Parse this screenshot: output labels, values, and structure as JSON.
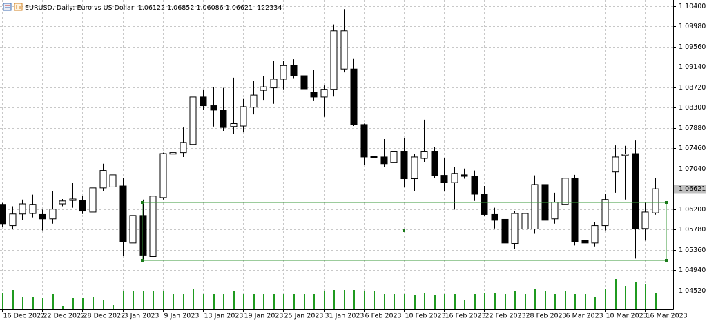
{
  "chart_data": {
    "type": "candlestick",
    "title": "EURUSD, Daily: Euro vs US Dollar",
    "categories": [
      "16 Dec 2022",
      null,
      null,
      null,
      "22 Dec 2022",
      null,
      null,
      null,
      "28 Dec 2022",
      null,
      null,
      null,
      "3 Jan 2023",
      null,
      null,
      null,
      "9 Jan 2023",
      null,
      null,
      null,
      "13 Jan 2023",
      null,
      null,
      null,
      "19 Jan 2023",
      null,
      null,
      null,
      "25 Jan 2023",
      null,
      null,
      null,
      "31 Jan 2023",
      null,
      null,
      null,
      "6 Feb 2023",
      null,
      null,
      null,
      "10 Feb 2023",
      null,
      null,
      null,
      "16 Feb 2023",
      null,
      null,
      null,
      "22 Feb 2023",
      null,
      null,
      null,
      "28 Feb 2023",
      null,
      null,
      null,
      "6 Mar 2023",
      null,
      null,
      null,
      "10 Mar 2023",
      null,
      null,
      null,
      "16 Mar 2023",
      null
    ],
    "open": [
      1.063,
      1.0586,
      1.061,
      1.0611,
      1.0609,
      1.06,
      1.0631,
      1.0638,
      1.0638,
      1.0614,
      1.0664,
      1.0666,
      1.0668,
      1.055,
      1.0607,
      1.0522,
      1.0644,
      1.0734,
      1.0737,
      1.0754,
      1.0852,
      1.0834,
      1.0825,
      1.0791,
      1.0792,
      1.0831,
      1.0866,
      1.0871,
      1.0889,
      1.0917,
      1.0896,
      1.0862,
      1.0852,
      1.0868,
      1.091,
      1.091,
      1.0795,
      1.073,
      1.0728,
      1.0717,
      1.074,
      1.0683,
      1.0725,
      1.074,
      1.069,
      1.0675,
      1.0691,
      1.0688,
      1.0651,
      1.0609,
      1.0599,
      1.0549,
      1.0579,
      1.0579,
      1.0671,
      1.06,
      1.063,
      1.0684,
      1.0555,
      1.055,
      1.0586,
      1.0697,
      1.0731,
      1.0735,
      1.058,
      1.06122
    ],
    "high": [
      1.0633,
      1.0626,
      1.064,
      1.065,
      1.0619,
      1.0658,
      1.0641,
      1.0674,
      1.0647,
      1.0693,
      1.0714,
      1.0711,
      1.0685,
      1.064,
      1.064,
      1.0651,
      1.0737,
      1.0761,
      1.0789,
      1.0868,
      1.0868,
      1.0873,
      1.0871,
      1.0892,
      1.0848,
      1.0886,
      1.0896,
      1.0927,
      1.0927,
      1.093,
      1.0912,
      1.0908,
      1.0876,
      1.1002,
      1.1034,
      1.0932,
      1.0797,
      1.0768,
      1.0765,
      1.0788,
      1.0767,
      1.0735,
      1.0805,
      1.0748,
      1.0725,
      1.0707,
      1.0704,
      1.07,
      1.0668,
      1.0623,
      1.0614,
      1.0616,
      1.065,
      1.069,
      1.0675,
      1.0654,
      1.0697,
      1.0691,
      1.0569,
      1.0594,
      1.0651,
      1.0752,
      1.0751,
      1.0762,
      1.0633,
      1.06852
    ],
    "low": [
      1.0583,
      1.0579,
      1.0597,
      1.0603,
      1.0576,
      1.059,
      1.0626,
      1.0623,
      1.061,
      1.0611,
      1.0657,
      1.0661,
      1.0523,
      1.0537,
      1.0512,
      1.0486,
      1.064,
      1.0728,
      1.0728,
      1.075,
      1.0825,
      1.0791,
      1.0782,
      1.0775,
      1.0779,
      1.0816,
      1.0846,
      1.0838,
      1.0868,
      1.0891,
      1.0852,
      1.0845,
      1.0811,
      1.0853,
      1.0903,
      1.0792,
      1.0711,
      1.0671,
      1.0708,
      1.0711,
      1.0665,
      1.0657,
      1.0718,
      1.0684,
      1.0657,
      1.0619,
      1.0683,
      1.0637,
      1.0606,
      1.058,
      1.054,
      1.0537,
      1.0572,
      1.0569,
      1.0589,
      1.059,
      1.0626,
      1.0545,
      1.0527,
      1.0543,
      1.0576,
      1.0654,
      1.064,
      1.0518,
      1.0555,
      1.06086
    ],
    "close": [
      1.059,
      1.061,
      1.0631,
      1.063,
      1.06,
      1.062,
      1.0637,
      1.0641,
      1.0616,
      1.0664,
      1.07,
      1.0691,
      1.0552,
      1.0607,
      1.0525,
      1.0647,
      1.0735,
      1.0737,
      1.0758,
      1.0852,
      1.0834,
      1.0825,
      1.0789,
      1.0797,
      1.0832,
      1.0856,
      1.0873,
      1.0889,
      1.0917,
      1.0896,
      1.0869,
      1.0852,
      1.0868,
      1.0989,
      1.0989,
      1.0795,
      1.0728,
      1.0727,
      1.0714,
      1.074,
      1.0683,
      1.0728,
      1.074,
      1.069,
      1.0675,
      1.0694,
      1.0688,
      1.0651,
      1.0609,
      1.0597,
      1.055,
      1.0611,
      1.0611,
      1.0671,
      1.0597,
      1.0634,
      1.0684,
      1.0552,
      1.055,
      1.0586,
      1.064,
      1.0728,
      1.0734,
      1.0579,
      1.0614,
      1.06621
    ],
    "volume": [
      122400,
      142800,
      91800,
      91800,
      81600,
      112200,
      20400,
      81600,
      81600,
      91800,
      71400,
      30600,
      132600,
      132600,
      132600,
      132600,
      132600,
      112200,
      112200,
      153000,
      112200,
      112200,
      112200,
      132600,
      112200,
      112200,
      112200,
      112200,
      112200,
      112200,
      112200,
      112200,
      132600,
      142800,
      142800,
      142800,
      132600,
      132600,
      112200,
      112200,
      112200,
      102000,
      122400,
      102000,
      112200,
      112200,
      71400,
      112200,
      122400,
      122400,
      112200,
      132600,
      112200,
      153000,
      132600,
      112200,
      132600,
      112200,
      112200,
      91800,
      153000,
      224400,
      173400,
      204000,
      183600,
      122334
    ],
    "ylim": [
      1.0413,
      1.10528
    ],
    "yticks": [
      {
        "value": 1.104,
        "label": "1.10400"
      },
      {
        "value": 1.0998,
        "label": "1.09980"
      },
      {
        "value": 1.0956,
        "label": "1.09560"
      },
      {
        "value": 1.0914,
        "label": "1.09140"
      },
      {
        "value": 1.0872,
        "label": "1.08720"
      },
      {
        "value": 1.083,
        "label": "1.08300"
      },
      {
        "value": 1.0788,
        "label": "1.07880"
      },
      {
        "value": 1.0746,
        "label": "1.07460"
      },
      {
        "value": 1.0704,
        "label": "1.07040"
      },
      {
        "value": 1.062,
        "label": "1.06200"
      },
      {
        "value": 1.0578,
        "label": "1.05780"
      },
      {
        "value": 1.0536,
        "label": "1.05360"
      },
      {
        "value": 1.0494,
        "label": "1.04940"
      },
      {
        "value": 1.0452,
        "label": "1.04520"
      }
    ],
    "grid": true,
    "up_color": "#ffffff",
    "down_color": "#000000",
    "volume_color": "#1f9a1f"
  }
}
